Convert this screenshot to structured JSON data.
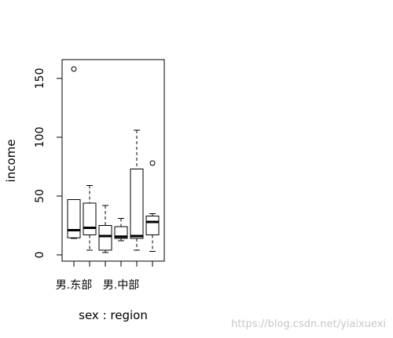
{
  "chart_data": {
    "type": "boxplot",
    "xlabel": "sex : region",
    "ylabel": "income",
    "ylim": [
      -5,
      165
    ],
    "yticks": [
      0,
      50,
      100,
      150
    ],
    "x_tick_labels": [
      "男.东部",
      "",
      "",
      "男.中部",
      "",
      ""
    ],
    "boxes": [
      {
        "min": 14,
        "q1": 14.5,
        "median": 21,
        "q3": 47,
        "max": 47,
        "outliers": [
          158
        ]
      },
      {
        "min": 4,
        "q1": 17,
        "median": 23,
        "q3": 44,
        "max": 59,
        "outliers": []
      },
      {
        "min": 2,
        "q1": 4,
        "median": 16,
        "q3": 25,
        "max": 42,
        "outliers": []
      },
      {
        "min": 12,
        "q1": 14,
        "median": 15.5,
        "q3": 24,
        "max": 31,
        "outliers": []
      },
      {
        "min": 4,
        "q1": 14,
        "median": 16,
        "q3": 73,
        "max": 106,
        "outliers": []
      },
      {
        "min": 3,
        "q1": 17,
        "median": 28,
        "q3": 33,
        "max": 35,
        "outliers": [
          78
        ]
      }
    ]
  },
  "watermark": "https://blog.csdn.net/yiaixuexi"
}
